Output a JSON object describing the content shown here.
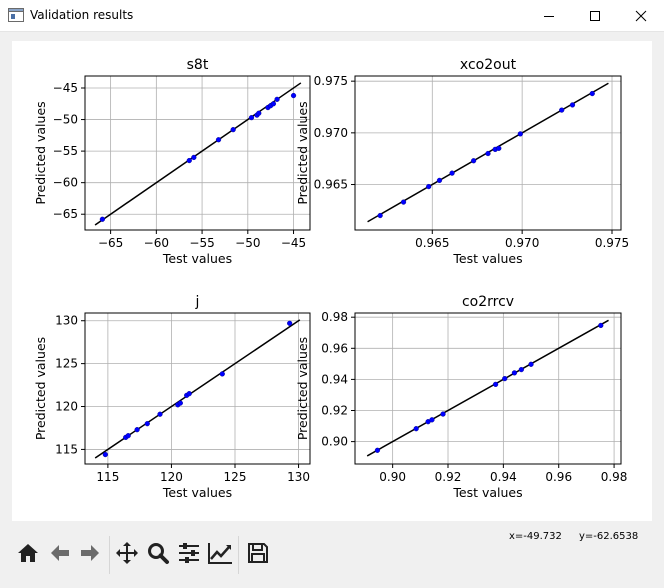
{
  "window": {
    "title": "Validation results",
    "app_icon": "window-app-icon",
    "buttons": [
      "minimize-icon",
      "maximize-icon",
      "close-icon"
    ]
  },
  "toolbar": {
    "buttons": [
      "home-icon",
      "back-arrow-icon",
      "forward-arrow-icon",
      "pan-move-icon",
      "zoom-magnifier-icon",
      "subplots-config-icon",
      "edit-axes-icon",
      "save-floppy-icon"
    ]
  },
  "status": {
    "x_readout": "x=-49.732",
    "y_readout": "y=-62.6538"
  },
  "colors": {
    "points": "#0000ff",
    "point_edge": "#00007a",
    "fit_line": "#000000",
    "grid": "#b0b0b0",
    "icon": "#222222",
    "icon_disabled": "#6b6b6b"
  },
  "chart_data": [
    {
      "type": "scatter",
      "title": "s8t",
      "xlabel": "Test values",
      "ylabel": "Predicted values",
      "xlim": [
        -67.8,
        -43.2
      ],
      "ylim": [
        -67.5,
        -43.1
      ],
      "xticks": [
        -65,
        -60,
        -55,
        -50,
        -45
      ],
      "xtick_labels": [
        "−65",
        "−60",
        "−55",
        "−50",
        "−45"
      ],
      "yticks": [
        -65,
        -60,
        -55,
        -50,
        -45
      ],
      "ytick_labels": [
        "−65",
        "−60",
        "−55",
        "−50",
        "−45"
      ],
      "grid": true,
      "line": {
        "x": [
          -66.7,
          -44.2
        ],
        "y": [
          -66.7,
          -44.2
        ]
      },
      "x": [
        -65.9,
        -56.4,
        -55.9,
        -53.2,
        -51.6,
        -49.6,
        -49.0,
        -48.8,
        -47.8,
        -47.5,
        -47.2,
        -46.8,
        -45.0
      ],
      "y": [
        -65.8,
        -56.5,
        -56.0,
        -53.2,
        -51.6,
        -49.7,
        -49.3,
        -49.0,
        -48.1,
        -47.8,
        -47.5,
        -46.8,
        -46.2
      ]
    },
    {
      "type": "scatter",
      "title": "xco2out",
      "xlabel": "Test values",
      "ylabel": "Predicted values",
      "xlim": [
        0.9607,
        0.9755
      ],
      "ylim": [
        0.9606,
        0.9755
      ],
      "xticks": [
        0.965,
        0.97,
        0.975
      ],
      "xtick_labels": [
        "0.965",
        "0.970",
        "0.975"
      ],
      "yticks": [
        0.965,
        0.97,
        0.975
      ],
      "ytick_labels": [
        "0.965",
        "0.970",
        "0.975"
      ],
      "grid": true,
      "line": {
        "x": [
          0.9614,
          0.9748
        ],
        "y": [
          0.9614,
          0.9748
        ]
      },
      "x": [
        0.9621,
        0.9634,
        0.9648,
        0.9654,
        0.9661,
        0.9673,
        0.9681,
        0.9685,
        0.9687,
        0.9699,
        0.9722,
        0.9728,
        0.9739
      ],
      "y": [
        0.962,
        0.9633,
        0.9648,
        0.9654,
        0.9661,
        0.9673,
        0.968,
        0.9684,
        0.9685,
        0.9699,
        0.9722,
        0.9727,
        0.9738
      ]
    },
    {
      "type": "scatter",
      "title": "j",
      "xlabel": "Test values",
      "ylabel": "Predicted values",
      "xlim": [
        113.2,
        130.9
      ],
      "ylim": [
        113.3,
        130.9
      ],
      "xticks": [
        115,
        120,
        125,
        130
      ],
      "xtick_labels": [
        "115",
        "120",
        "125",
        "130"
      ],
      "yticks": [
        115,
        120,
        125,
        130
      ],
      "ytick_labels": [
        "115",
        "120",
        "125",
        "130"
      ],
      "grid": true,
      "line": {
        "x": [
          114.0,
          130.1
        ],
        "y": [
          114.0,
          130.1
        ]
      },
      "x": [
        114.8,
        116.4,
        116.6,
        117.3,
        118.1,
        119.1,
        120.5,
        120.7,
        121.2,
        121.4,
        124.0,
        129.3
      ],
      "y": [
        114.4,
        116.4,
        116.6,
        117.3,
        118.0,
        119.1,
        120.2,
        120.4,
        121.3,
        121.5,
        123.8,
        129.7
      ]
    },
    {
      "type": "scatter",
      "title": "co2rrcv",
      "xlabel": "Test values",
      "ylabel": "Predicted values",
      "xlim": [
        0.8864,
        0.9825
      ],
      "ylim": [
        0.8856,
        0.9827
      ],
      "xticks": [
        0.9,
        0.92,
        0.94,
        0.96,
        0.98
      ],
      "xtick_labels": [
        "0.90",
        "0.92",
        "0.94",
        "0.96",
        "0.98"
      ],
      "yticks": [
        0.9,
        0.92,
        0.94,
        0.96,
        0.98
      ],
      "ytick_labels": [
        "0.90",
        "0.92",
        "0.94",
        "0.96",
        "0.98"
      ],
      "grid": true,
      "line": {
        "x": [
          0.8908,
          0.978
        ],
        "y": [
          0.8908,
          0.978
        ]
      },
      "x": [
        0.8945,
        0.9085,
        0.9128,
        0.9142,
        0.9182,
        0.9372,
        0.9405,
        0.944,
        0.9465,
        0.95,
        0.9752
      ],
      "y": [
        0.8944,
        0.9083,
        0.9128,
        0.914,
        0.9177,
        0.9368,
        0.9405,
        0.9442,
        0.9463,
        0.9497,
        0.9747
      ]
    }
  ]
}
